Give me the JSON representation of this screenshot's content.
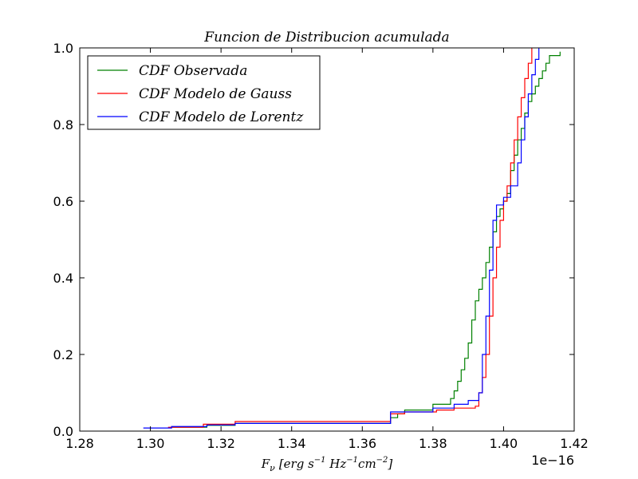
{
  "chart_data": {
    "type": "line",
    "title": "Funcion de Distribucion acumulada",
    "xlabel": "F_ν [erg s^-1 Hz^-1 cm^-2]",
    "xlabel_parts": {
      "main": "F",
      "sub": "ν",
      "b1": "[erg s",
      "e1": "−1",
      "b2": " Hz",
      "e2": "−1",
      "b3": "cm",
      "e3": "−2",
      "b4": "]"
    },
    "ylabel": "",
    "x_offset_label": "1e−16",
    "xlim": [
      1.28,
      1.42
    ],
    "ylim": [
      0.0,
      1.0
    ],
    "xticks": [
      1.28,
      1.3,
      1.32,
      1.34,
      1.36,
      1.38,
      1.4,
      1.42
    ],
    "xtick_labels": [
      "1.28",
      "1.30",
      "1.32",
      "1.34",
      "1.36",
      "1.38",
      "1.40",
      "1.42"
    ],
    "yticks": [
      0.0,
      0.2,
      0.4,
      0.6,
      0.8,
      1.0
    ],
    "ytick_labels": [
      "0.0",
      "0.2",
      "0.4",
      "0.6",
      "0.8",
      "1.0"
    ],
    "grid": false,
    "legend_position": "top-left",
    "series": [
      {
        "name": "CDF Observada",
        "color": "#008000",
        "steps": [
          [
            1.306,
            0.01
          ],
          [
            1.316,
            0.015
          ],
          [
            1.324,
            0.02
          ],
          [
            1.368,
            0.035
          ],
          [
            1.37,
            0.045
          ],
          [
            1.372,
            0.055
          ],
          [
            1.38,
            0.07
          ],
          [
            1.385,
            0.085
          ],
          [
            1.386,
            0.105
          ],
          [
            1.387,
            0.13
          ],
          [
            1.388,
            0.16
          ],
          [
            1.389,
            0.19
          ],
          [
            1.39,
            0.23
          ],
          [
            1.391,
            0.29
          ],
          [
            1.392,
            0.34
          ],
          [
            1.393,
            0.37
          ],
          [
            1.394,
            0.4
          ],
          [
            1.395,
            0.44
          ],
          [
            1.396,
            0.48
          ],
          [
            1.397,
            0.52
          ],
          [
            1.398,
            0.56
          ],
          [
            1.399,
            0.58
          ],
          [
            1.4,
            0.6
          ],
          [
            1.401,
            0.62
          ],
          [
            1.402,
            0.68
          ],
          [
            1.403,
            0.72
          ],
          [
            1.404,
            0.76
          ],
          [
            1.405,
            0.79
          ],
          [
            1.406,
            0.83
          ],
          [
            1.407,
            0.86
          ],
          [
            1.408,
            0.88
          ],
          [
            1.409,
            0.9
          ],
          [
            1.41,
            0.92
          ],
          [
            1.411,
            0.94
          ],
          [
            1.412,
            0.96
          ],
          [
            1.413,
            0.98
          ],
          [
            1.416,
            0.99
          ]
        ]
      },
      {
        "name": "CDF Modelo de Gauss",
        "color": "#ff0000",
        "steps": [
          [
            1.305,
            0.01
          ],
          [
            1.315,
            0.018
          ],
          [
            1.324,
            0.025
          ],
          [
            1.368,
            0.045
          ],
          [
            1.372,
            0.05
          ],
          [
            1.381,
            0.055
          ],
          [
            1.386,
            0.06
          ],
          [
            1.392,
            0.065
          ],
          [
            1.393,
            0.1
          ],
          [
            1.394,
            0.14
          ],
          [
            1.395,
            0.2
          ],
          [
            1.396,
            0.3
          ],
          [
            1.397,
            0.4
          ],
          [
            1.398,
            0.48
          ],
          [
            1.399,
            0.55
          ],
          [
            1.4,
            0.6
          ],
          [
            1.401,
            0.64
          ],
          [
            1.402,
            0.7
          ],
          [
            1.403,
            0.76
          ],
          [
            1.404,
            0.82
          ],
          [
            1.405,
            0.87
          ],
          [
            1.406,
            0.92
          ],
          [
            1.407,
            0.96
          ],
          [
            1.408,
            1.0
          ]
        ]
      },
      {
        "name": "CDF Modelo de Lorentz",
        "color": "#0000ff",
        "steps": [
          [
            1.298,
            0.008
          ],
          [
            1.306,
            0.012
          ],
          [
            1.316,
            0.016
          ],
          [
            1.324,
            0.02
          ],
          [
            1.368,
            0.05
          ],
          [
            1.38,
            0.06
          ],
          [
            1.386,
            0.07
          ],
          [
            1.39,
            0.08
          ],
          [
            1.393,
            0.1
          ],
          [
            1.394,
            0.2
          ],
          [
            1.395,
            0.3
          ],
          [
            1.396,
            0.42
          ],
          [
            1.397,
            0.55
          ],
          [
            1.398,
            0.59
          ],
          [
            1.4,
            0.61
          ],
          [
            1.402,
            0.64
          ],
          [
            1.404,
            0.7
          ],
          [
            1.405,
            0.76
          ],
          [
            1.406,
            0.82
          ],
          [
            1.407,
            0.88
          ],
          [
            1.408,
            0.93
          ],
          [
            1.409,
            0.97
          ],
          [
            1.41,
            1.0
          ]
        ]
      }
    ]
  }
}
